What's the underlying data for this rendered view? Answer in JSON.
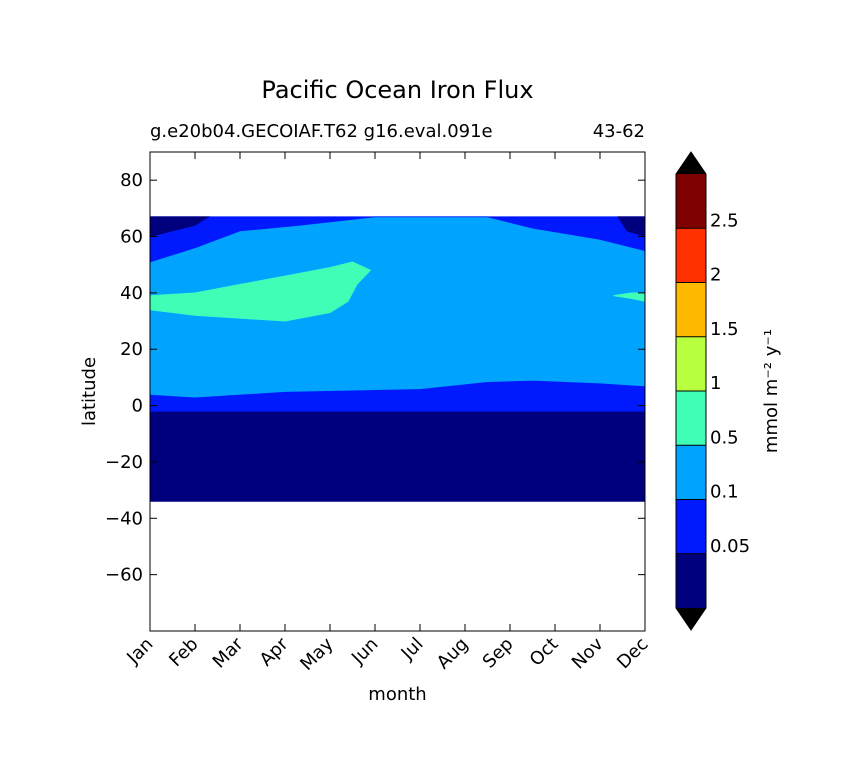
{
  "chart_data": {
    "type": "heatmap",
    "title": "Pacific Ocean Iron Flux",
    "subtitle_left": "g.e20b04.GECOIAF.T62 g16.eval.091e",
    "subtitle_right": "43-62",
    "xlabel": "month",
    "ylabel": "latitude",
    "x_ticks": [
      "Jan",
      "Feb",
      "Mar",
      "Apr",
      "May",
      "Jun",
      "Jul",
      "Aug",
      "Sep",
      "Oct",
      "Nov",
      "Dec"
    ],
    "y_ticks": [
      80,
      60,
      40,
      20,
      0,
      -20,
      -40,
      -60
    ],
    "ylim": [
      -80,
      90
    ],
    "xlim": [
      0,
      11
    ],
    "colorbar": {
      "label": "mmol m⁻² y⁻¹",
      "tick_labels": [
        "0.05",
        "0.1",
        "0.5",
        "1",
        "1.5",
        "2",
        "2.5"
      ],
      "levels": [
        {
          "range": "<0.05",
          "color": "#00007f"
        },
        {
          "range": "0.05-0.1",
          "color": "#0019ff"
        },
        {
          "range": "0.1-0.5",
          "color": "#00a4ff"
        },
        {
          "range": "0.5-1",
          "color": "#3fffb7"
        },
        {
          "range": "1-1.5",
          "color": "#b7ff3f"
        },
        {
          "range": "1.5-2",
          "color": "#ffb900"
        },
        {
          "range": "2-2.5",
          "color": "#ff3000"
        },
        {
          "range": ">2.5",
          "color": "#7f0000"
        }
      ],
      "extend_low_color": "#000000",
      "extend_high_color": "#000000"
    },
    "data_lat_range": [
      -34,
      67
    ],
    "regions": [
      {
        "level": "<0.05",
        "description": "southern tropics/subtropics, all months",
        "boundary": [
          [
            0,
            -34
          ],
          [
            11,
            -34
          ],
          [
            11,
            -2
          ],
          [
            0,
            -2
          ]
        ]
      },
      {
        "level": "0.05-0.1",
        "description": "equatorial band",
        "boundary": [
          [
            0,
            -2
          ],
          [
            11,
            -2
          ],
          [
            11,
            7
          ],
          [
            10,
            8
          ],
          [
            8.5,
            9
          ],
          [
            7.5,
            8.5
          ],
          [
            6,
            6
          ],
          [
            4.5,
            5.5
          ],
          [
            3,
            5
          ],
          [
            1,
            3
          ],
          [
            0,
            4
          ]
        ]
      },
      {
        "level": "0.1-0.5",
        "description": "main body of basin",
        "boundary": [
          [
            0,
            4
          ],
          [
            1,
            3
          ],
          [
            3,
            5
          ],
          [
            4.5,
            5.5
          ],
          [
            6,
            6
          ],
          [
            7.5,
            8.5
          ],
          [
            8.5,
            9
          ],
          [
            10,
            8
          ],
          [
            11,
            7
          ],
          [
            11,
            55
          ],
          [
            10,
            59
          ],
          [
            8.5,
            63
          ],
          [
            7.5,
            67
          ],
          [
            5,
            67
          ],
          [
            3.3,
            64
          ],
          [
            2,
            62
          ],
          [
            1,
            56
          ],
          [
            0,
            51
          ]
        ]
      },
      {
        "level": "0.05-0.1",
        "description": "subpolar north",
        "boundary": [
          [
            0,
            51
          ],
          [
            1,
            56
          ],
          [
            2,
            62
          ],
          [
            3.3,
            64
          ],
          [
            5,
            67
          ],
          [
            7.5,
            67
          ],
          [
            8.5,
            63
          ],
          [
            10,
            59
          ],
          [
            11,
            55
          ],
          [
            11,
            67
          ],
          [
            0,
            67
          ]
        ]
      },
      {
        "level": "<0.05",
        "description": "high latitude north, Jan-Feb",
        "boundary": [
          [
            0,
            60
          ],
          [
            1,
            64
          ],
          [
            1.3,
            67
          ],
          [
            0,
            67
          ]
        ]
      },
      {
        "level": "<0.05",
        "description": "high latitude north, Dec",
        "boundary": [
          [
            10.4,
            67
          ],
          [
            11,
            67
          ],
          [
            11,
            60
          ],
          [
            10.6,
            62
          ]
        ]
      },
      {
        "level": "0.5-1",
        "description": "North Pacific plume, Feb-Jun",
        "boundary": [
          [
            0,
            34
          ],
          [
            0,
            39
          ],
          [
            1,
            40
          ],
          [
            2,
            43
          ],
          [
            3,
            46
          ],
          [
            4,
            49
          ],
          [
            4.5,
            51
          ],
          [
            4.9,
            48
          ],
          [
            4.6,
            43
          ],
          [
            4.5,
            40
          ],
          [
            4.4,
            37
          ],
          [
            4,
            33
          ],
          [
            3,
            30
          ],
          [
            2,
            31
          ],
          [
            1,
            32
          ]
        ]
      },
      {
        "level": "0.5-1",
        "description": "small plume, Dec",
        "boundary": [
          [
            10.3,
            39
          ],
          [
            10.7,
            40
          ],
          [
            11,
            40
          ],
          [
            11,
            37
          ],
          [
            10.7,
            38
          ]
        ]
      }
    ]
  }
}
